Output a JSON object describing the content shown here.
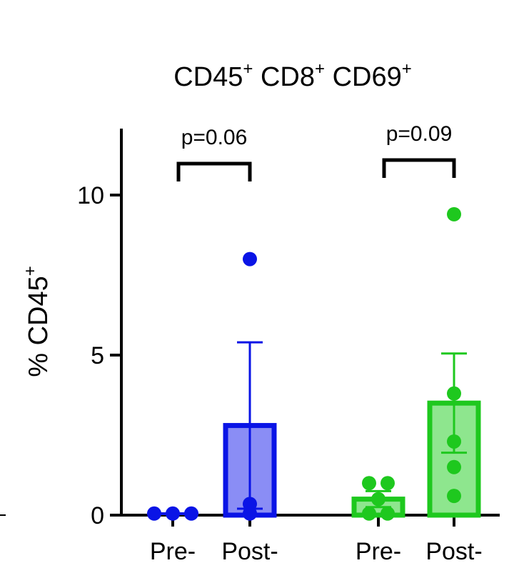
{
  "chart_data": {
    "type": "bar",
    "title": {
      "parts": [
        {
          "text": "CD45",
          "sup": "+"
        },
        {
          "text": "CD8",
          "sup": "+"
        },
        {
          "text": "CD69",
          "sup": "+"
        }
      ]
    },
    "ylabel": {
      "text": "% CD45",
      "sup": "+"
    },
    "ylim": [
      0,
      12
    ],
    "yticks": [
      {
        "value": 0,
        "label": "0"
      },
      {
        "value": 5,
        "label": "5"
      },
      {
        "value": 10,
        "label": "10"
      }
    ],
    "categories": [
      "Pre-",
      "Post-",
      "Pre-",
      "Post-"
    ],
    "groups": [
      {
        "color": "#0a14e6",
        "fill": "#8a8df5",
        "bars": [
          {
            "label": "Pre-",
            "mean": 0,
            "sem": 0,
            "points": [
              0.05,
              0.05,
              0.05
            ]
          },
          {
            "label": "Post-",
            "mean": 2.8,
            "sem": 2.6,
            "points": [
              8.0,
              0.35,
              0.05
            ]
          }
        ],
        "comparison": {
          "label": "p=0.06"
        }
      },
      {
        "color": "#1ec81e",
        "fill": "#8ee68e",
        "bars": [
          {
            "label": "Pre-",
            "mean": 0.5,
            "sem": 0.25,
            "points": [
              1.0,
              1.0,
              0.05,
              0.5,
              0.05
            ]
          },
          {
            "label": "Post-",
            "mean": 3.5,
            "sem": 1.55,
            "points": [
              9.4,
              3.8,
              2.3,
              1.5,
              0.6
            ]
          }
        ],
        "comparison": {
          "label": "p=0.09"
        }
      }
    ]
  }
}
